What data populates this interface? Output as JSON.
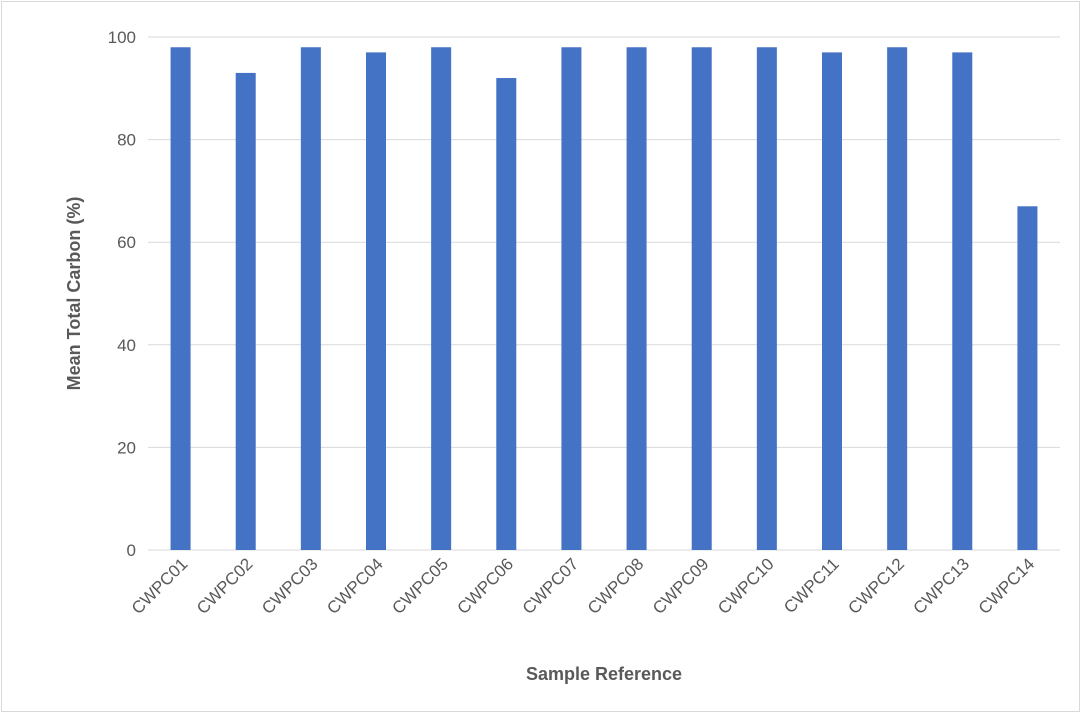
{
  "chart_data": {
    "type": "bar",
    "title": "",
    "xlabel": "Sample Reference",
    "ylabel": "Mean Total Carbon (%)",
    "ylim": [
      0,
      100
    ],
    "yticks": [
      0,
      20,
      40,
      60,
      80,
      100
    ],
    "grid": true,
    "legend": "none",
    "bar_color": "#4472c4",
    "categories": [
      "CWPC01",
      "CWPC02",
      "CWPC03",
      "CWPC04",
      "CWPC05",
      "CWPC06",
      "CWPC07",
      "CWPC08",
      "CWPC09",
      "CWPC10",
      "CWPC11",
      "CWPC12",
      "CWPC13",
      "CWPC14"
    ],
    "values": [
      98,
      93,
      98,
      97,
      98,
      92,
      98,
      98,
      98,
      98,
      97,
      98,
      97,
      67
    ]
  }
}
